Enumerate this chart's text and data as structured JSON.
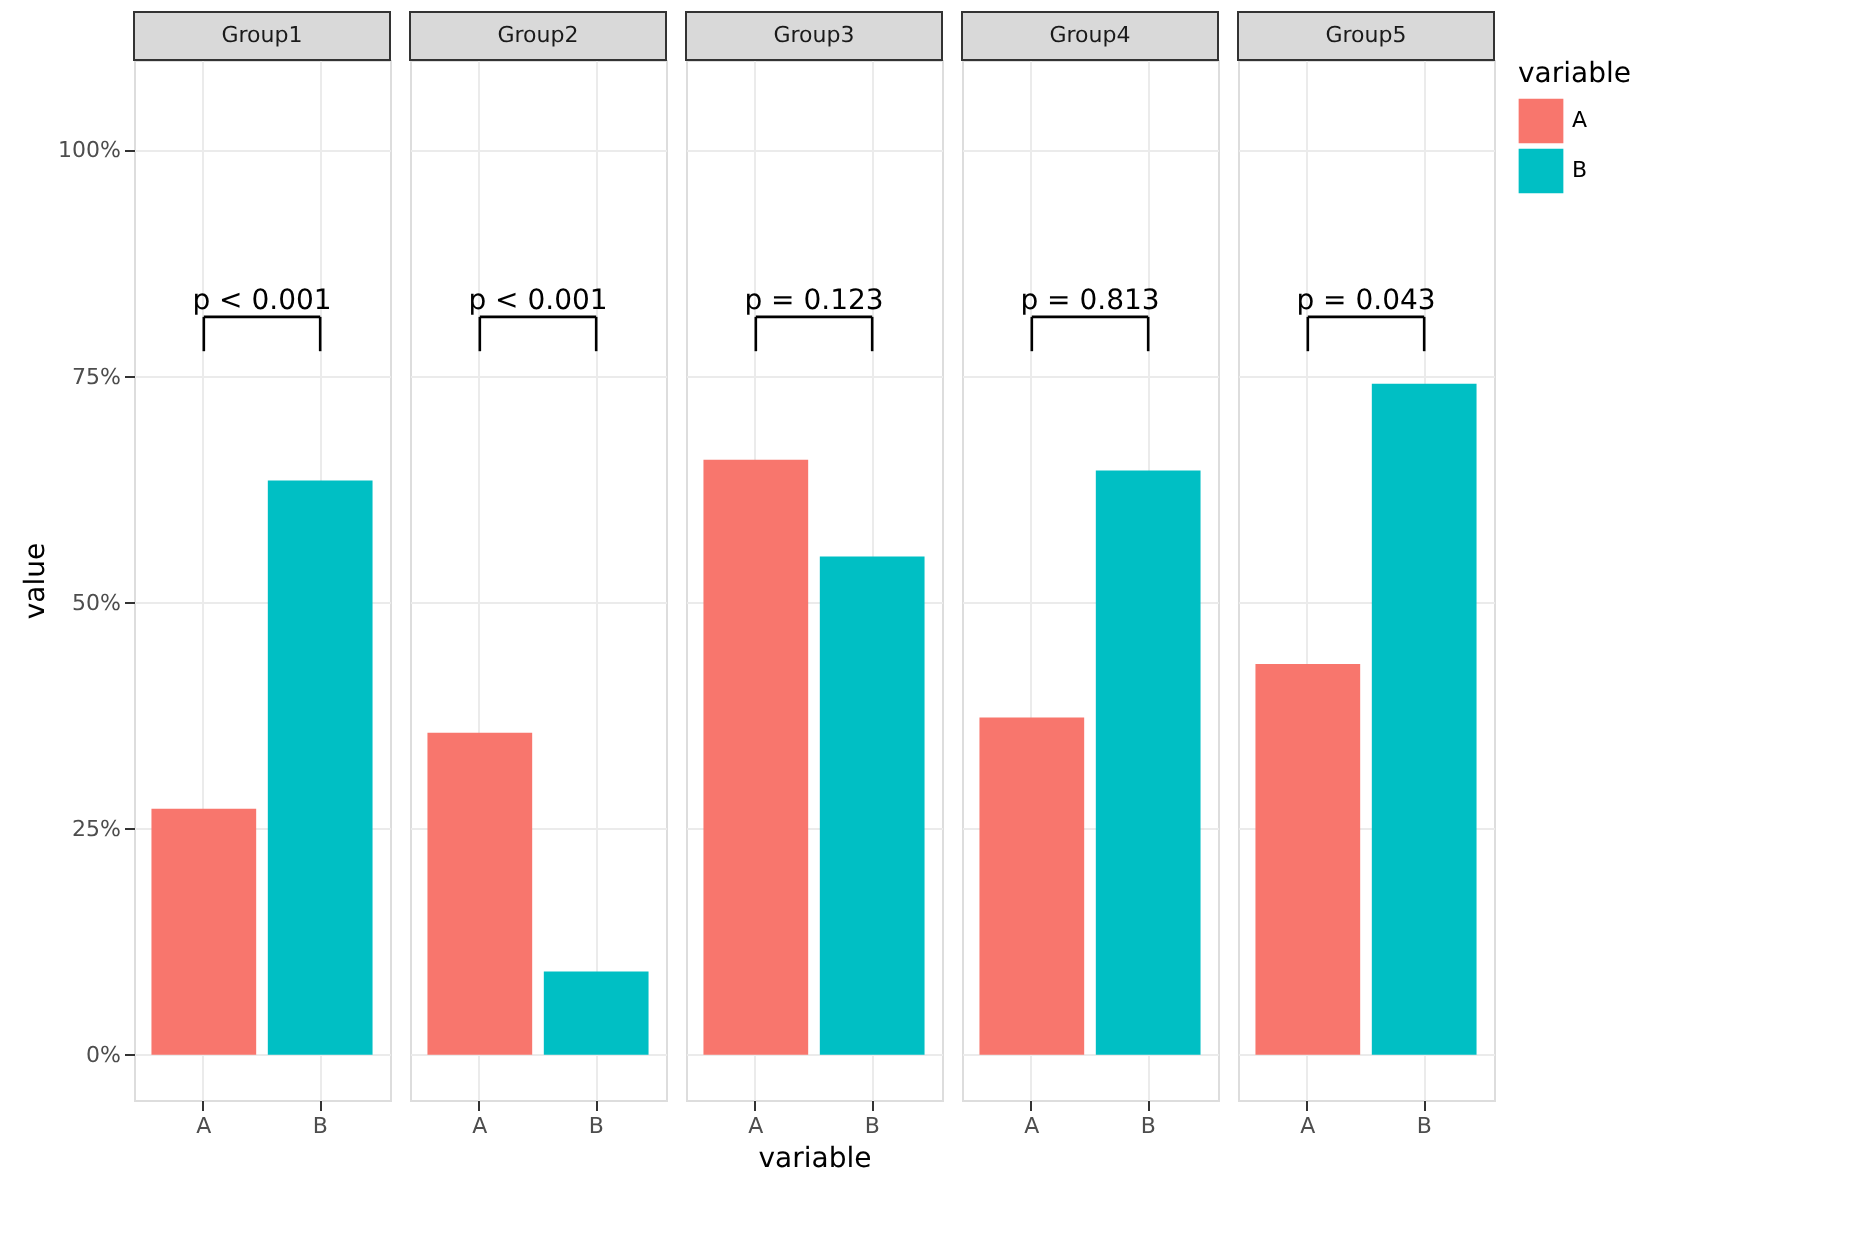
{
  "chart_data": [
    {
      "type": "bar",
      "title": "Group1",
      "categories": [
        "A",
        "B"
      ],
      "values": [
        27.2,
        63.5
      ],
      "colors": [
        "#f8766d",
        "#00bfc4"
      ],
      "ylabel": "value",
      "ylim": [
        -5,
        110
      ],
      "yticks": [
        {
          "value": 0,
          "label": "0%"
        },
        {
          "value": 25,
          "label": "25%"
        },
        {
          "value": 50,
          "label": "50%"
        },
        {
          "value": 75,
          "label": "75%"
        },
        {
          "value": 100,
          "label": "100%"
        }
      ],
      "grid": true,
      "annotations": [
        "p < 0.001"
      ]
    },
    {
      "type": "bar",
      "title": "Group2",
      "categories": [
        "A",
        "B"
      ],
      "values": [
        35.6,
        9.2
      ],
      "colors": [
        "#f8766d",
        "#00bfc4"
      ],
      "ylim": [
        -5,
        110
      ],
      "tick_labels": "x",
      "grid": true,
      "annotations": [
        "p < 0.001"
      ]
    },
    {
      "type": "bar",
      "title": "Group3",
      "categories": [
        "A",
        "B"
      ],
      "values": [
        65.8,
        55.1
      ],
      "colors": [
        "#f8766d",
        "#00bfc4"
      ],
      "xlabel": "variable",
      "ylim": [
        -5,
        110
      ],
      "tick_labels": "x",
      "grid": true,
      "annotations": [
        "p = 0.123"
      ]
    },
    {
      "type": "bar",
      "title": "Group4",
      "categories": [
        "A",
        "B"
      ],
      "values": [
        37.3,
        64.6
      ],
      "colors": [
        "#f8766d",
        "#00bfc4"
      ],
      "ylim": [
        -5,
        110
      ],
      "tick_labels": "x",
      "grid": true,
      "annotations": [
        "p = 0.813"
      ]
    },
    {
      "type": "bar",
      "title": "Group5",
      "categories": [
        "A",
        "B"
      ],
      "series": [
        {
          "name": "A",
          "color": "#f8766d",
          "values": [
            43.2,
            null
          ]
        },
        {
          "name": "B",
          "color": "#00bfc4",
          "values": [
            null,
            74.2
          ]
        }
      ],
      "ylim": [
        -5,
        110
      ],
      "tick_labels": "x",
      "grid": true,
      "annotations": [
        "p = 0.043"
      ],
      "legend": "right",
      "legend_title": "variable"
    }
  ]
}
